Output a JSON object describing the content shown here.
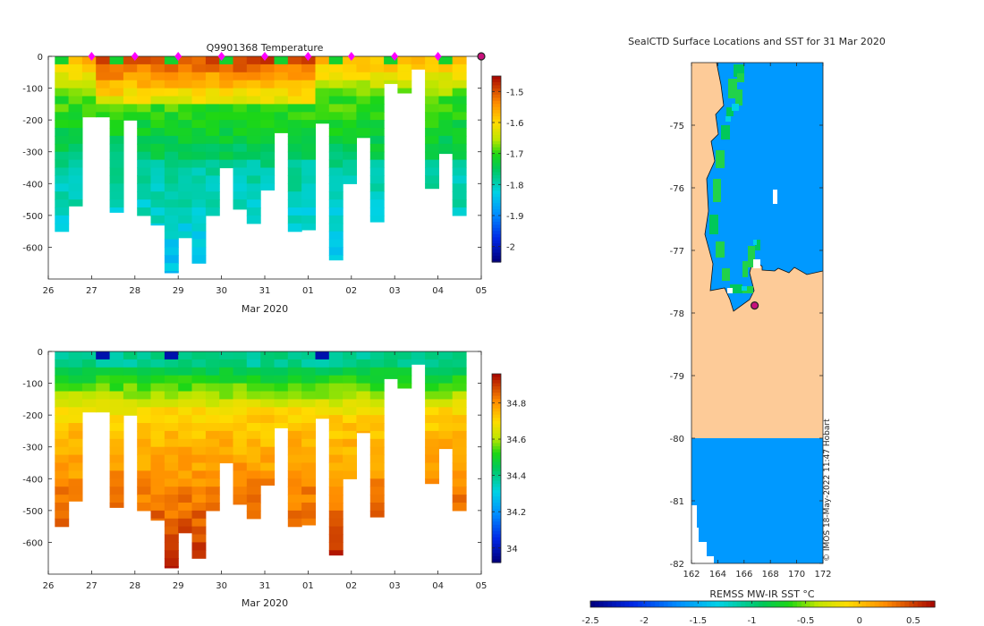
{
  "chart_data": [
    {
      "type": "heatmap",
      "title": "Q9901368  Temperature",
      "xlabel": "Mar 2020",
      "ylabel": "",
      "x_tick_labels": [
        "26",
        "27",
        "28",
        "29",
        "30",
        "31",
        "01",
        "02",
        "03",
        "04",
        "05"
      ],
      "y_ticks": [
        0,
        -100,
        -200,
        -300,
        -400,
        -500,
        -600
      ],
      "ylim": [
        -700,
        0
      ],
      "colorbar_ticks": [
        -1.5,
        -1.6,
        -1.7,
        -1.8,
        -1.9,
        -2
      ],
      "colorbar_range": [
        -2.05,
        -1.45
      ],
      "profile_depths": [
        550,
        470,
        190,
        190,
        490,
        200,
        500,
        530,
        680,
        570,
        650,
        500,
        350,
        480,
        525,
        420,
        240,
        550,
        545,
        210,
        640,
        400,
        255,
        520,
        85,
        115,
        40,
        415,
        305,
        500
      ],
      "surface_markers_days": [
        27,
        28,
        29,
        30,
        31,
        32,
        33,
        34,
        35
      ],
      "latest_marker_day": 36
    },
    {
      "type": "heatmap",
      "title": "",
      "xlabel": "Mar 2020",
      "ylabel": "",
      "x_tick_labels": [
        "26",
        "27",
        "28",
        "29",
        "30",
        "31",
        "01",
        "02",
        "03",
        "04",
        "05"
      ],
      "y_ticks": [
        0,
        -100,
        -200,
        -300,
        -400,
        -500,
        -600
      ],
      "ylim": [
        -700,
        0
      ],
      "colorbar_ticks": [
        34.8,
        34.6,
        34.4,
        34.2,
        34
      ],
      "colorbar_range": [
        33.92,
        34.96
      ]
    },
    {
      "type": "heatmap",
      "title": "SealCTD Surface Locations and SST for 31 Mar 2020",
      "xlabel": "",
      "ylabel": "",
      "x_ticks": [
        162,
        164,
        166,
        168,
        170,
        172
      ],
      "y_ticks": [
        -75,
        -76,
        -77,
        -78,
        -79,
        -80,
        -81,
        -82
      ],
      "xlim": [
        162,
        172
      ],
      "ylim": [
        -82,
        -74
      ],
      "colorbar_label": "REMSS MW-IR SST °C",
      "colorbar_ticks": [
        -2.5,
        -2,
        -1.5,
        -1,
        -0.5,
        0,
        0.5
      ],
      "colorbar_range": [
        -2.5,
        0.7
      ],
      "seal_location": {
        "lon": 166.8,
        "lat": -77.88
      },
      "credit": "© IMOS 18-May-2022 11:47 Hobart"
    }
  ],
  "colors": {
    "land": "#fdcb98",
    "ocean": "#0099ff",
    "marker_fill": "#ff00ff",
    "latest_marker_fill": "#c8107c"
  }
}
